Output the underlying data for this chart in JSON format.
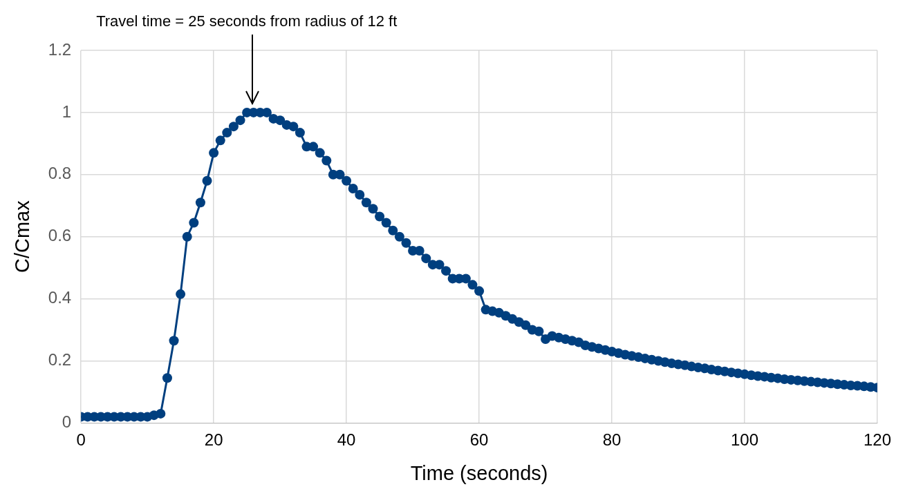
{
  "chart_data": {
    "type": "line",
    "xlabel": "Time (seconds)",
    "ylabel": "C/Cmax",
    "annotations": [
      "Travel time = 25 seconds from radius of 12 ft"
    ],
    "x": [
      0,
      1,
      2,
      3,
      4,
      5,
      6,
      7,
      8,
      9,
      10,
      11,
      12,
      13,
      14,
      15,
      16,
      17,
      18,
      19,
      20,
      21,
      22,
      23,
      24,
      25,
      26,
      27,
      28,
      29,
      30,
      31,
      32,
      33,
      34,
      35,
      36,
      37,
      38,
      39,
      40,
      41,
      42,
      43,
      44,
      45,
      46,
      47,
      48,
      49,
      50,
      51,
      52,
      53,
      54,
      55,
      56,
      57,
      58,
      59,
      60,
      61,
      62,
      63,
      64,
      65,
      66,
      67,
      68,
      69,
      70,
      71,
      72,
      73,
      74,
      75,
      76,
      77,
      78,
      79,
      80,
      81,
      82,
      83,
      84,
      85,
      86,
      87,
      88,
      89,
      90,
      91,
      92,
      93,
      94,
      95,
      96,
      97,
      98,
      99,
      100,
      101,
      102,
      103,
      104,
      105,
      106,
      107,
      108,
      109,
      110,
      111,
      112,
      113,
      114,
      115,
      116,
      117,
      118,
      119,
      120
    ],
    "series": [
      {
        "color": "#003f7f",
        "values": [
          0.02,
          0.02,
          0.02,
          0.02,
          0.02,
          0.02,
          0.02,
          0.02,
          0.02,
          0.02,
          0.02,
          0.025,
          0.03,
          0.145,
          0.265,
          0.415,
          0.6,
          0.645,
          0.71,
          0.78,
          0.87,
          0.91,
          0.935,
          0.955,
          0.975,
          1,
          1,
          1,
          1,
          0.98,
          0.975,
          0.96,
          0.955,
          0.935,
          0.89,
          0.89,
          0.87,
          0.845,
          0.8,
          0.8,
          0.78,
          0.755,
          0.735,
          0.71,
          0.69,
          0.665,
          0.645,
          0.62,
          0.6,
          0.58,
          0.555,
          0.555,
          0.53,
          0.51,
          0.51,
          0.49,
          0.465,
          0.465,
          0.465,
          0.445,
          0.425,
          0.365,
          0.36,
          0.355,
          0.345,
          0.335,
          0.325,
          0.315,
          0.3,
          0.295,
          0.27,
          0.28,
          0.275,
          0.27,
          0.265,
          0.26,
          0.25,
          0.245,
          0.24,
          0.235,
          0.23,
          0.225,
          0.22,
          0.216,
          0.212,
          0.208,
          0.204,
          0.2,
          0.196,
          0.192,
          0.189,
          0.186,
          0.182,
          0.179,
          0.176,
          0.172,
          0.169,
          0.166,
          0.163,
          0.16,
          0.157,
          0.154,
          0.151,
          0.149,
          0.146,
          0.144,
          0.141,
          0.139,
          0.137,
          0.135,
          0.133,
          0.131,
          0.129,
          0.127,
          0.125,
          0.123,
          0.121,
          0.12,
          0.118,
          0.116,
          0.114
        ]
      }
    ],
    "xlim": [
      0,
      120
    ],
    "xticks": [
      0,
      20,
      40,
      60,
      80,
      100,
      120
    ],
    "ylim": [
      0,
      1.2
    ],
    "yticks": [
      0,
      0.2,
      0.4,
      0.6,
      0.8,
      1,
      1.2
    ],
    "grid": true,
    "legend": false,
    "marker": "circle",
    "line_style": "solid"
  }
}
